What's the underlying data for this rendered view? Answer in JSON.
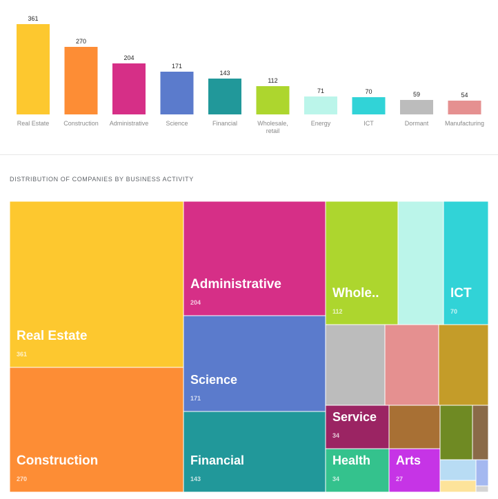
{
  "chart_data": [
    {
      "type": "bar",
      "categories": [
        "Real Estate",
        "Construction",
        "Administrative",
        "Science",
        "Financial",
        "Wholesale, retail",
        "Energy",
        "ICT",
        "Dormant",
        "Manufacturing"
      ],
      "values": [
        361,
        270,
        204,
        171,
        143,
        112,
        71,
        70,
        59,
        54
      ],
      "colors": [
        "#fdc82f",
        "#fd8d35",
        "#d62f87",
        "#5b7bcc",
        "#21989a",
        "#add62e",
        "#bbf5ea",
        "#31d3d7",
        "#bcbcbc",
        "#e59090"
      ],
      "ylim": [
        0,
        361
      ]
    },
    {
      "type": "treemap",
      "title": "DISTRIBUTION OF COMPANIES BY BUSINESS ACTIVITY",
      "items": [
        {
          "name": "Real Estate",
          "value": 361,
          "color": "#fdc82f",
          "label": "Real Estate",
          "value_label": "361"
        },
        {
          "name": "Construction",
          "value": 270,
          "color": "#fd8d35",
          "label": "Construction",
          "value_label": "270"
        },
        {
          "name": "Administrative",
          "value": 204,
          "color": "#d62f87",
          "label": "Administrative",
          "value_label": "204"
        },
        {
          "name": "Science",
          "value": 171,
          "color": "#5b7bcc",
          "label": "Science",
          "value_label": "171"
        },
        {
          "name": "Financial",
          "value": 143,
          "color": "#21989a",
          "label": "Financial",
          "value_label": "143"
        },
        {
          "name": "Wholesale, retail",
          "value": 112,
          "color": "#add62e",
          "label": "Whole..",
          "value_label": "112"
        },
        {
          "name": "Energy",
          "value": 71,
          "color": "#bbf5ea",
          "label": "",
          "value_label": ""
        },
        {
          "name": "ICT",
          "value": 70,
          "color": "#31d3d7",
          "label": "ICT",
          "value_label": "70"
        },
        {
          "name": "Dormant",
          "value": 59,
          "color": "#bcbcbc",
          "label": "",
          "value_label": ""
        },
        {
          "name": "Manufacturing",
          "value": 54,
          "color": "#e59090",
          "label": "",
          "value_label": ""
        },
        {
          "name": "",
          "value": 50,
          "color": "#c49c29",
          "label": "",
          "value_label": ""
        },
        {
          "name": "Service",
          "value": 34,
          "color": "#9b2463",
          "label": "Service",
          "value_label": "34"
        },
        {
          "name": "",
          "value": 32,
          "color": "#a87034",
          "label": "",
          "value_label": ""
        },
        {
          "name": "Health",
          "value": 34,
          "color": "#34c28d",
          "label": "Health",
          "value_label": "34"
        },
        {
          "name": "Arts",
          "value": 27,
          "color": "#c634e6",
          "label": "Arts",
          "value_label": "27"
        },
        {
          "name": "",
          "value": 20,
          "color": "#6f8a23",
          "label": "",
          "value_label": ""
        },
        {
          "name": "",
          "value": 11,
          "color": "#8a6a48",
          "label": "",
          "value_label": ""
        },
        {
          "name": "",
          "value": 5,
          "color": "#b8dcf4",
          "label": "",
          "value_label": ""
        },
        {
          "name": "",
          "value": 2,
          "color": "#fde39a",
          "label": "",
          "value_label": ""
        },
        {
          "name": "",
          "value": 2,
          "color": "#a4b8f0",
          "label": "",
          "value_label": ""
        },
        {
          "name": "",
          "value": 1,
          "color": "#d4d4d4",
          "label": "",
          "value_label": ""
        }
      ]
    }
  ]
}
